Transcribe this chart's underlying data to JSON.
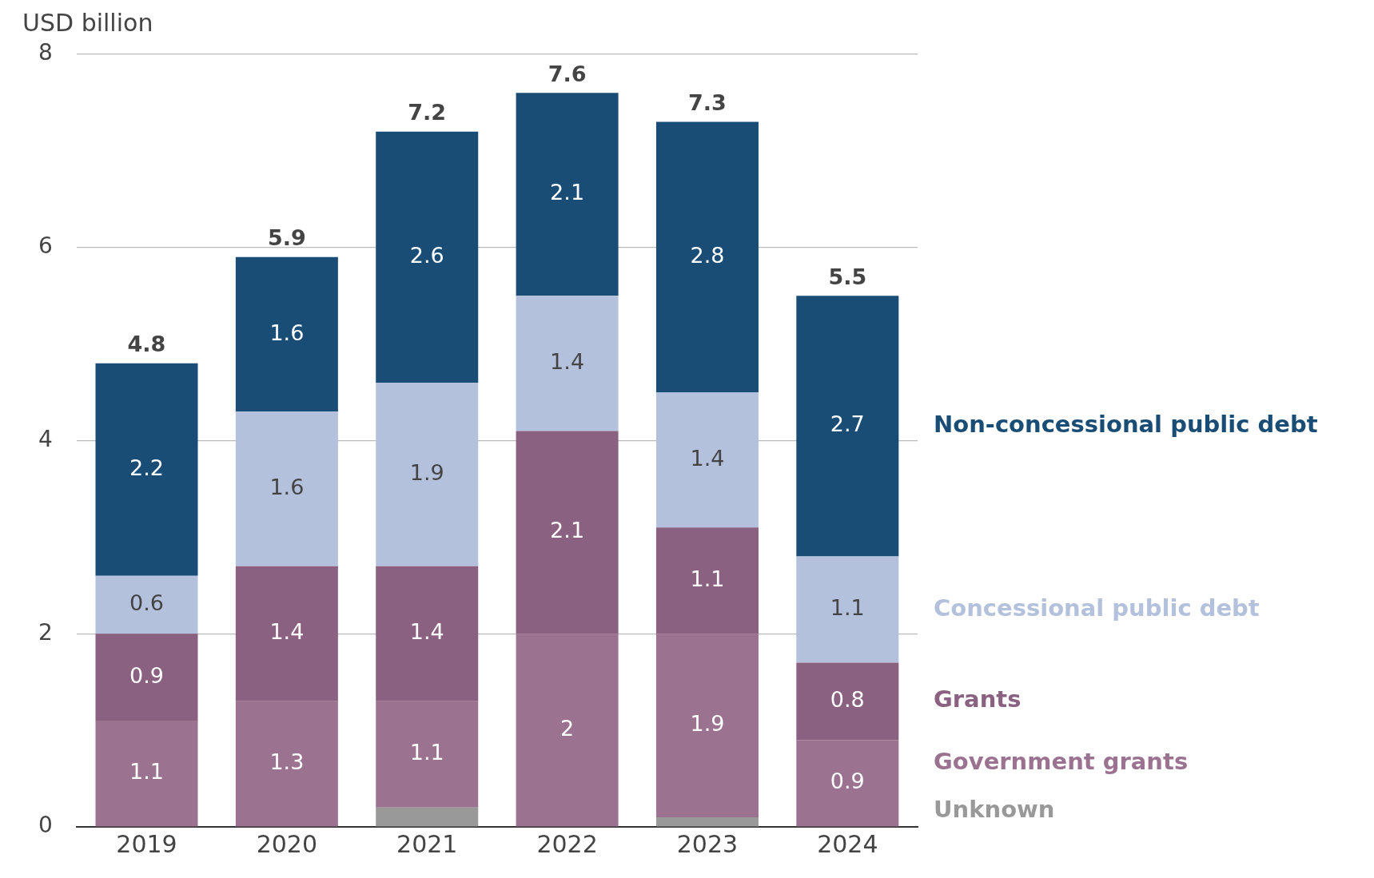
{
  "chart_data": {
    "type": "bar",
    "stacked": true,
    "ylabel": "USD billion",
    "categories": [
      "2019",
      "2020",
      "2021",
      "2022",
      "2023",
      "2024"
    ],
    "series": [
      {
        "name": "Unknown",
        "color": "#999999",
        "values": [
          null,
          null,
          0.2,
          null,
          0.1,
          null
        ],
        "value_labels": [
          null,
          null,
          null,
          null,
          null,
          null
        ]
      },
      {
        "name": "Government grants",
        "color": "#9b7391",
        "values": [
          1.1,
          1.3,
          1.1,
          2,
          1.9,
          0.9
        ],
        "value_labels": [
          "1.1",
          "1.3",
          "1.1",
          "2",
          "1.9",
          "0.9"
        ]
      },
      {
        "name": "Grants",
        "color": "#8b6181",
        "values": [
          0.9,
          1.4,
          1.4,
          2.1,
          1.1,
          0.8
        ],
        "value_labels": [
          "0.9",
          "1.4",
          "1.4",
          "2.1",
          "1.1",
          "0.8"
        ]
      },
      {
        "name": "Concessional public debt",
        "color": "#b3c1dd",
        "values": [
          0.6,
          1.6,
          1.9,
          1.4,
          1.4,
          1.1
        ],
        "value_labels": [
          "0.6",
          "1.6",
          "1.9",
          "1.4",
          "1.4",
          "1.1"
        ]
      },
      {
        "name": "Non-concessional public debt",
        "color": "#1a4d76",
        "values": [
          2.2,
          1.6,
          2.6,
          2.1,
          2.8,
          2.7
        ],
        "value_labels": [
          "2.2",
          "1.6",
          "2.6",
          "2.1",
          "2.8",
          "2.7"
        ]
      }
    ],
    "totals": [
      "4.8",
      "5.9",
      "7.2",
      "7.6",
      "7.3",
      "5.5"
    ],
    "ylim": [
      0,
      8
    ],
    "yticks": [
      0,
      2,
      4,
      6,
      8
    ],
    "grid": "y",
    "legend": "right"
  }
}
